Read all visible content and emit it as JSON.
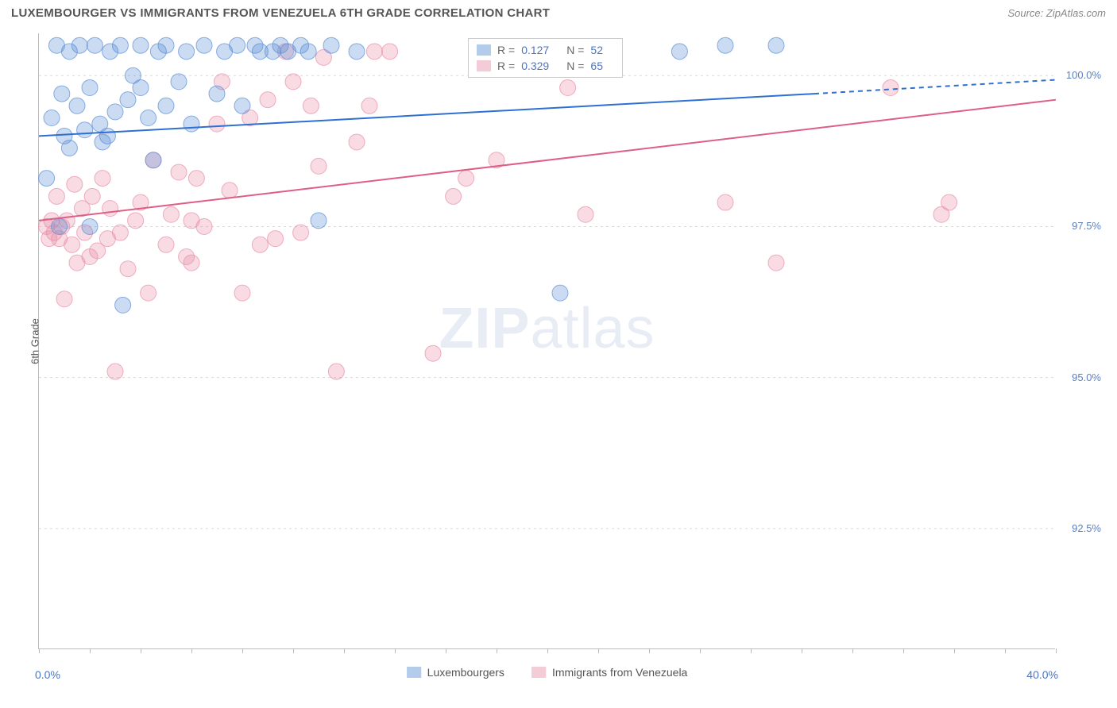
{
  "title": "LUXEMBOURGER VS IMMIGRANTS FROM VENEZUELA 6TH GRADE CORRELATION CHART",
  "source": "Source: ZipAtlas.com",
  "watermark_prefix": "ZIP",
  "watermark_suffix": "atlas",
  "chart": {
    "type": "scatter",
    "background_color": "#ffffff",
    "grid_color": "#d8d8d8",
    "axis_color": "#bbbbbb",
    "xlim": [
      0,
      40
    ],
    "ylim": [
      90.5,
      100.7
    ],
    "x_ticks": [
      0,
      20,
      40
    ],
    "x_tick_labels": [
      "0.0%",
      "",
      "40.0%"
    ],
    "x_minor_ticks": [
      2,
      4,
      6,
      8,
      10,
      12,
      14,
      16,
      18,
      22,
      24,
      26,
      28,
      30,
      32,
      34,
      36,
      38
    ],
    "y_ticks": [
      92.5,
      95.0,
      97.5,
      100.0
    ],
    "y_tick_labels": [
      "92.5%",
      "95.0%",
      "97.5%",
      "100.0%"
    ],
    "y_axis_title": "6th Grade",
    "marker_radius": 10,
    "marker_opacity": 0.32,
    "marker_stroke_opacity": 0.7,
    "line_width": 2,
    "title_fontsize": 15,
    "label_fontsize": 13,
    "series": [
      {
        "name": "Luxembourgers",
        "color": "#5b8fd6",
        "line_color": "#2f6fd0",
        "R": "0.127",
        "N": "52",
        "trend": {
          "x1": 0,
          "y1": 99.0,
          "x2": 30.5,
          "y2": 99.7,
          "x2_dash": 40,
          "y2_dash": 99.93
        },
        "points": [
          [
            0.3,
            98.3
          ],
          [
            0.5,
            99.3
          ],
          [
            0.7,
            100.5
          ],
          [
            0.8,
            97.5
          ],
          [
            0.9,
            99.7
          ],
          [
            1.0,
            99.0
          ],
          [
            1.2,
            100.4
          ],
          [
            1.2,
            98.8
          ],
          [
            1.5,
            99.5
          ],
          [
            1.6,
            100.5
          ],
          [
            1.8,
            99.1
          ],
          [
            2.0,
            99.8
          ],
          [
            2.0,
            97.5
          ],
          [
            2.2,
            100.5
          ],
          [
            2.4,
            99.2
          ],
          [
            2.5,
            98.9
          ],
          [
            2.7,
            99.0
          ],
          [
            2.8,
            100.4
          ],
          [
            3.0,
            99.4
          ],
          [
            3.2,
            100.5
          ],
          [
            3.3,
            96.2
          ],
          [
            3.5,
            99.6
          ],
          [
            3.7,
            100.0
          ],
          [
            4.0,
            99.8
          ],
          [
            4.0,
            100.5
          ],
          [
            4.3,
            99.3
          ],
          [
            4.5,
            98.6
          ],
          [
            4.7,
            100.4
          ],
          [
            5.0,
            99.5
          ],
          [
            5.0,
            100.5
          ],
          [
            5.5,
            99.9
          ],
          [
            5.8,
            100.4
          ],
          [
            6.0,
            99.2
          ],
          [
            6.5,
            100.5
          ],
          [
            7.0,
            99.7
          ],
          [
            7.3,
            100.4
          ],
          [
            7.8,
            100.5
          ],
          [
            8.0,
            99.5
          ],
          [
            8.5,
            100.5
          ],
          [
            8.7,
            100.4
          ],
          [
            9.2,
            100.4
          ],
          [
            9.5,
            100.5
          ],
          [
            9.8,
            100.4
          ],
          [
            10.3,
            100.5
          ],
          [
            10.6,
            100.4
          ],
          [
            11.0,
            97.6
          ],
          [
            11.5,
            100.5
          ],
          [
            12.5,
            100.4
          ],
          [
            20.5,
            96.4
          ],
          [
            25.2,
            100.4
          ],
          [
            27.0,
            100.5
          ],
          [
            29.0,
            100.5
          ]
        ]
      },
      {
        "name": "Immigrants from Venezuela",
        "color": "#e88fa8",
        "line_color": "#de5f85",
        "R": "0.329",
        "N": "65",
        "trend": {
          "x1": 0,
          "y1": 97.6,
          "x2": 40,
          "y2": 99.6
        },
        "points": [
          [
            0.3,
            97.5
          ],
          [
            0.4,
            97.3
          ],
          [
            0.5,
            97.6
          ],
          [
            0.6,
            97.4
          ],
          [
            0.7,
            98.0
          ],
          [
            0.8,
            97.3
          ],
          [
            0.9,
            97.5
          ],
          [
            1.0,
            96.3
          ],
          [
            1.1,
            97.6
          ],
          [
            1.3,
            97.2
          ],
          [
            1.4,
            98.2
          ],
          [
            1.5,
            96.9
          ],
          [
            1.7,
            97.8
          ],
          [
            1.8,
            97.4
          ],
          [
            2.0,
            97.0
          ],
          [
            2.1,
            98.0
          ],
          [
            2.3,
            97.1
          ],
          [
            2.5,
            98.3
          ],
          [
            2.7,
            97.3
          ],
          [
            2.8,
            97.8
          ],
          [
            3.0,
            95.1
          ],
          [
            3.2,
            97.4
          ],
          [
            3.5,
            96.8
          ],
          [
            3.8,
            97.6
          ],
          [
            4.0,
            97.9
          ],
          [
            4.3,
            96.4
          ],
          [
            4.5,
            98.6
          ],
          [
            5.0,
            97.2
          ],
          [
            5.2,
            97.7
          ],
          [
            5.5,
            98.4
          ],
          [
            5.8,
            97.0
          ],
          [
            6.0,
            96.9
          ],
          [
            6.0,
            97.6
          ],
          [
            6.2,
            98.3
          ],
          [
            6.5,
            97.5
          ],
          [
            7.0,
            99.2
          ],
          [
            7.2,
            99.9
          ],
          [
            7.5,
            98.1
          ],
          [
            8.0,
            96.4
          ],
          [
            8.3,
            99.3
          ],
          [
            8.7,
            97.2
          ],
          [
            9.0,
            99.6
          ],
          [
            9.3,
            97.3
          ],
          [
            9.7,
            100.4
          ],
          [
            10.0,
            99.9
          ],
          [
            10.3,
            97.4
          ],
          [
            10.7,
            99.5
          ],
          [
            11.0,
            98.5
          ],
          [
            11.2,
            100.3
          ],
          [
            11.7,
            95.1
          ],
          [
            12.5,
            98.9
          ],
          [
            13.0,
            99.5
          ],
          [
            13.2,
            100.4
          ],
          [
            13.8,
            100.4
          ],
          [
            15.5,
            95.4
          ],
          [
            16.3,
            98.0
          ],
          [
            16.8,
            98.3
          ],
          [
            18.0,
            98.6
          ],
          [
            20.8,
            99.8
          ],
          [
            21.5,
            97.7
          ],
          [
            27.0,
            97.9
          ],
          [
            29.0,
            96.9
          ],
          [
            33.5,
            99.8
          ],
          [
            35.5,
            97.7
          ],
          [
            35.8,
            97.9
          ]
        ]
      }
    ]
  },
  "legend_bottom": {
    "items": [
      "Luxembourgers",
      "Immigrants from Venezuela"
    ]
  }
}
